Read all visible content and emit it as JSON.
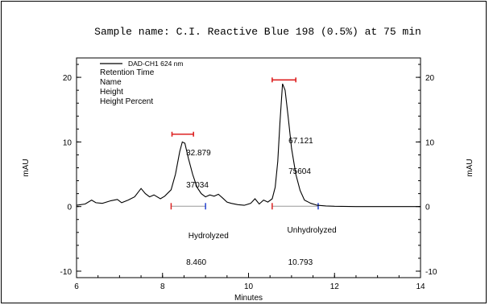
{
  "chart_data": {
    "type": "line",
    "title": "Sample name: C.I. Reactive Blue 198 (0.5%) at 75 min",
    "xlabel": "Minutes",
    "ylabel_left": "mAU",
    "ylabel_right": "mAU",
    "xlim": [
      6,
      14
    ],
    "ylim": [
      -11,
      23
    ],
    "x_ticks": [
      6,
      8,
      10,
      12,
      14
    ],
    "y_ticks": [
      -10,
      0,
      10,
      20
    ],
    "legend": {
      "series_label": "DAD-CH1 624 nm",
      "fields": [
        "Retention Time",
        "Name",
        "Height",
        "Height Percent"
      ]
    },
    "series": [
      {
        "name": "DAD-CH1 624 nm",
        "x": [
          6.0,
          6.2,
          6.35,
          6.45,
          6.6,
          6.8,
          6.95,
          7.05,
          7.2,
          7.35,
          7.5,
          7.6,
          7.7,
          7.8,
          7.95,
          8.05,
          8.2,
          8.3,
          8.4,
          8.46,
          8.52,
          8.6,
          8.7,
          8.8,
          8.9,
          9.0,
          9.1,
          9.2,
          9.3,
          9.4,
          9.5,
          9.6,
          9.75,
          9.9,
          10.05,
          10.15,
          10.25,
          10.35,
          10.45,
          10.55,
          10.62,
          10.68,
          10.73,
          10.79,
          10.85,
          10.92,
          11.0,
          11.1,
          11.2,
          11.3,
          11.45,
          11.6,
          11.8,
          12.0,
          12.5,
          13.0,
          13.5,
          14.0
        ],
        "y": [
          0.2,
          0.4,
          1.0,
          0.6,
          0.5,
          0.9,
          1.1,
          0.6,
          1.0,
          1.5,
          2.8,
          2.0,
          1.5,
          1.8,
          1.2,
          1.6,
          2.6,
          5.0,
          8.5,
          10.0,
          9.8,
          7.5,
          5.0,
          3.0,
          2.0,
          1.5,
          1.8,
          1.6,
          1.9,
          1.3,
          0.7,
          0.5,
          0.3,
          0.2,
          0.5,
          1.2,
          0.4,
          1.0,
          0.7,
          1.2,
          3.0,
          7.0,
          13.0,
          19.0,
          18.0,
          14.0,
          9.0,
          5.0,
          2.5,
          1.0,
          0.5,
          0.2,
          0.1,
          0.05,
          0.0,
          0.0,
          0.0,
          0.0
        ]
      }
    ],
    "peaks": [
      {
        "retention_time": "8.460",
        "name": "Hydrolyzed",
        "height": "32.879",
        "height_percent": "37034",
        "x": 8.46,
        "start": 8.2,
        "end": 9.0,
        "bar_from": 8.22,
        "bar_to": 8.72,
        "bar_y": 11.2
      },
      {
        "retention_time": "10.793",
        "name": "Unhydrolyzed",
        "height": "67.121",
        "height_percent": "75604",
        "x": 10.793,
        "start": 10.55,
        "end": 11.62,
        "bar_from": 10.55,
        "bar_to": 11.1,
        "bar_y": 19.6
      }
    ]
  }
}
